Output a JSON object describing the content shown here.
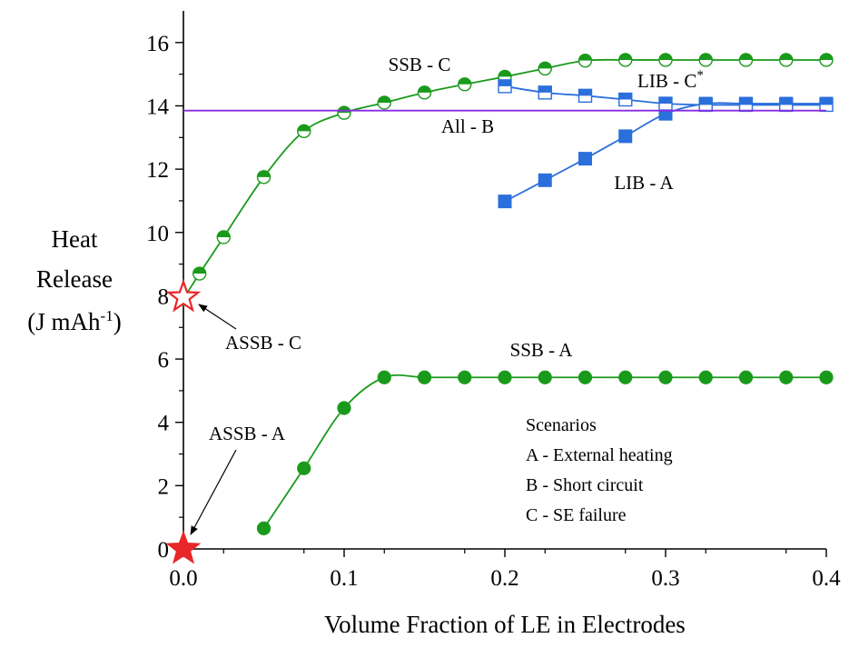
{
  "chart_data": {
    "type": "scatter",
    "title": "",
    "xlabel": "Volume Fraction of LE in Electrodes",
    "ylabel": {
      "line1": "Heat",
      "line2": "Release",
      "line3_prefix": "(J mAh",
      "line3_sup": "-1",
      "line3_suffix": ")"
    },
    "xlim": [
      0,
      0.4
    ],
    "ylim": [
      0,
      17
    ],
    "x_ticks": [
      0.0,
      0.1,
      0.2,
      0.3,
      0.4
    ],
    "x_tick_labels": [
      "0.0",
      "0.1",
      "0.2",
      "0.3",
      "0.4"
    ],
    "y_ticks": [
      0,
      2,
      4,
      6,
      8,
      10,
      12,
      14,
      16
    ],
    "y_tick_labels": [
      "0",
      "2",
      "4",
      "6",
      "8",
      "10",
      "12",
      "14",
      "16"
    ],
    "grid": false,
    "series": [
      {
        "name": "SSB - C",
        "marker": "half-circle",
        "color": "#1a9a1a",
        "x": [
          0.0,
          0.01,
          0.025,
          0.05,
          0.075,
          0.1,
          0.125,
          0.15,
          0.175,
          0.2,
          0.225,
          0.25,
          0.275,
          0.3,
          0.325,
          0.35,
          0.375,
          0.4
        ],
        "y": [
          7.9,
          8.7,
          9.85,
          11.75,
          13.2,
          13.78,
          14.1,
          14.42,
          14.68,
          14.92,
          15.18,
          15.43,
          15.45,
          15.45,
          15.45,
          15.45,
          15.45,
          15.45
        ]
      },
      {
        "name": "SSB - A",
        "marker": "filled-circle",
        "color": "#1a9a1a",
        "x": [
          0.05,
          0.075,
          0.1,
          0.125,
          0.15,
          0.175,
          0.2,
          0.225,
          0.25,
          0.275,
          0.3,
          0.325,
          0.35,
          0.375,
          0.4
        ],
        "y": [
          0.65,
          2.55,
          4.45,
          5.42,
          5.42,
          5.42,
          5.42,
          5.42,
          5.42,
          5.42,
          5.42,
          5.42,
          5.42,
          5.42,
          5.42
        ]
      },
      {
        "name": "LIB - A",
        "marker": "filled-square",
        "color": "#2a6fdb",
        "x": [
          0.2,
          0.225,
          0.25,
          0.275,
          0.3,
          0.325,
          0.35,
          0.375,
          0.4
        ],
        "y": [
          10.98,
          11.65,
          12.33,
          13.04,
          13.75,
          14.07,
          14.07,
          14.07,
          14.07
        ]
      },
      {
        "name": "LIB - C",
        "name_sup": "*",
        "marker": "half-square",
        "color": "#2a6fdb",
        "x": [
          0.2,
          0.225,
          0.25,
          0.275,
          0.3,
          0.325,
          0.35,
          0.375,
          0.4
        ],
        "y": [
          14.62,
          14.42,
          14.32,
          14.2,
          14.07,
          14.03,
          14.03,
          14.03,
          14.03
        ]
      },
      {
        "name": "All - B",
        "marker": "none",
        "color": "#8a2be2",
        "x": [
          0.0,
          0.4
        ],
        "y": [
          13.85,
          13.85
        ]
      },
      {
        "name": "ASSB - C",
        "marker": "open-star",
        "color": "#e8262a",
        "x": [
          0.0
        ],
        "y": [
          7.95
        ]
      },
      {
        "name": "ASSB - A",
        "marker": "filled-star",
        "color": "#e8262a",
        "x": [
          0.0
        ],
        "y": [
          0.0
        ]
      }
    ],
    "annotations": {
      "ssb_c": "SSB - C",
      "ssb_a": "SSB - A",
      "lib_a": "LIB - A",
      "lib_c": "LIB - C",
      "lib_c_sup": "*",
      "all_b": "All - B",
      "assb_c": "ASSB - C",
      "assb_a": "ASSB - A"
    },
    "legend": {
      "position": "bottom-right",
      "title": "Scenarios",
      "entries": [
        "A - External heating",
        "B - Short circuit",
        "C - SE failure"
      ]
    }
  }
}
